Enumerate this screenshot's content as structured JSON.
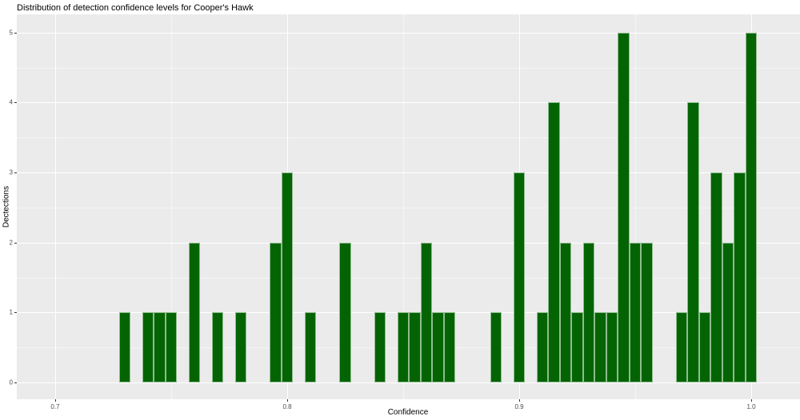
{
  "chart_data": {
    "type": "bar",
    "subtype": "histogram",
    "title": "Distribution of detection confidence levels for Cooper's Hawk",
    "xlabel": "Confidence",
    "ylabel": "Dectections",
    "legend": "none",
    "grid": true,
    "xlim": [
      0.68345,
      1.02103
    ],
    "ylim": [
      -0.24,
      5.26
    ],
    "bin_width": 0.005,
    "x_ticks": [
      {
        "value": 0.7,
        "label": "0.7"
      },
      {
        "value": 0.8,
        "label": "0.8"
      },
      {
        "value": 0.9,
        "label": "0.9"
      },
      {
        "value": 1.0,
        "label": "1.0"
      }
    ],
    "y_ticks": [
      {
        "value": 0,
        "label": "0"
      },
      {
        "value": 1,
        "label": "1"
      },
      {
        "value": 2,
        "label": "2"
      },
      {
        "value": 3,
        "label": "3"
      },
      {
        "value": 4,
        "label": "4"
      },
      {
        "value": 5,
        "label": "5"
      }
    ],
    "x_minor": [
      0.75,
      0.85,
      0.95
    ],
    "y_minor": [
      0.5,
      1.5,
      2.5,
      3.5,
      4.5
    ],
    "bins": [
      {
        "x": 0.73,
        "count": 1
      },
      {
        "x": 0.74,
        "count": 1
      },
      {
        "x": 0.745,
        "count": 1
      },
      {
        "x": 0.75,
        "count": 1
      },
      {
        "x": 0.76,
        "count": 2
      },
      {
        "x": 0.77,
        "count": 1
      },
      {
        "x": 0.78,
        "count": 1
      },
      {
        "x": 0.795,
        "count": 2
      },
      {
        "x": 0.8,
        "count": 3
      },
      {
        "x": 0.81,
        "count": 1
      },
      {
        "x": 0.825,
        "count": 2
      },
      {
        "x": 0.84,
        "count": 1
      },
      {
        "x": 0.85,
        "count": 1
      },
      {
        "x": 0.855,
        "count": 1
      },
      {
        "x": 0.86,
        "count": 2
      },
      {
        "x": 0.865,
        "count": 1
      },
      {
        "x": 0.87,
        "count": 1
      },
      {
        "x": 0.89,
        "count": 1
      },
      {
        "x": 0.9,
        "count": 3
      },
      {
        "x": 0.91,
        "count": 1
      },
      {
        "x": 0.915,
        "count": 4
      },
      {
        "x": 0.92,
        "count": 2
      },
      {
        "x": 0.925,
        "count": 1
      },
      {
        "x": 0.93,
        "count": 2
      },
      {
        "x": 0.935,
        "count": 1
      },
      {
        "x": 0.94,
        "count": 1
      },
      {
        "x": 0.945,
        "count": 5
      },
      {
        "x": 0.95,
        "count": 2
      },
      {
        "x": 0.955,
        "count": 2
      },
      {
        "x": 0.97,
        "count": 1
      },
      {
        "x": 0.975,
        "count": 4
      },
      {
        "x": 0.98,
        "count": 1
      },
      {
        "x": 0.985,
        "count": 3
      },
      {
        "x": 0.99,
        "count": 2
      },
      {
        "x": 0.995,
        "count": 3
      },
      {
        "x": 1.0,
        "count": 5
      }
    ],
    "colors": {
      "bar_fill": "#046404",
      "bar_stroke": "#8fbc8f",
      "panel_bg": "#ebebeb",
      "grid_major": "#ffffff",
      "grid_minor": "#f5f5f5",
      "tick_label": "#4d4d4d",
      "text": "#000000",
      "background": "#ffffff"
    }
  }
}
